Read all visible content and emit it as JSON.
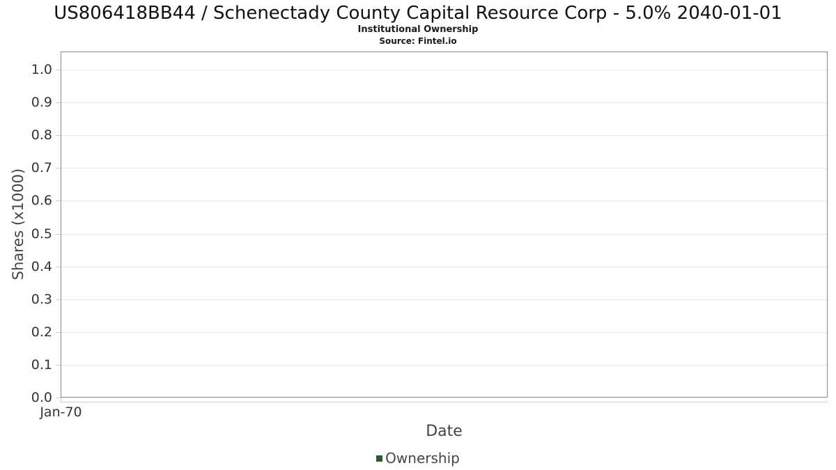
{
  "chart_data": {
    "type": "line",
    "title": "US806418BB44 / Schenectady County Capital Resource Corp - 5.0% 2040-01-01",
    "subtitle": "Institutional Ownership",
    "source": "Source: Fintel.io",
    "xlabel": "Date",
    "ylabel": "Shares (x1000)",
    "x_tick_labels": [
      "Jan-70"
    ],
    "y_tick_labels": [
      "0.0",
      "0.1",
      "0.2",
      "0.3",
      "0.4",
      "0.5",
      "0.6",
      "0.7",
      "0.8",
      "0.9",
      "1.0"
    ],
    "ylim": [
      0.0,
      1.05
    ],
    "grid": true,
    "legend_position": "bottom",
    "series": [
      {
        "name": "Ownership",
        "color": "#265b2e",
        "points": []
      }
    ],
    "colors": {
      "plot_border": "#888888",
      "gridline": "#e6e6e6",
      "tick": "#cccccc",
      "axis_line": "#cccccc",
      "title_text": "#111111",
      "label_text": "#444444"
    }
  }
}
